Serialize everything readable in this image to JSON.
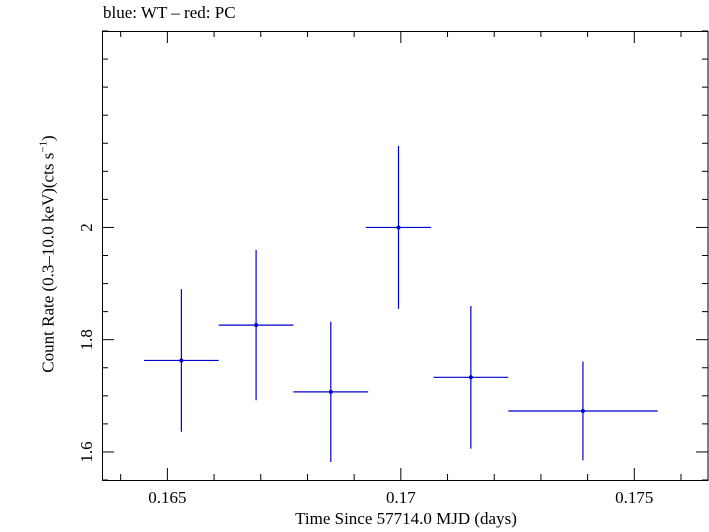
{
  "chart_data": {
    "type": "scatter",
    "title": "blue: WT – red: PC",
    "xlabel": "Time Since 57714.0 MJD (days)",
    "ylabel_main": "Count Rate (0.3–10.0 keV)(cts s",
    "ylabel_sup": "−1",
    "ylabel_tail": ")",
    "xlim": [
      0.1636,
      0.1766
    ],
    "ylim": [
      1.55,
      2.35
    ],
    "x_ticks": [
      {
        "value": 0.165,
        "label": "0.165"
      },
      {
        "value": 0.17,
        "label": "0.17"
      },
      {
        "value": 0.175,
        "label": "0.175"
      }
    ],
    "x_minor_step": 0.001,
    "y_ticks": [
      {
        "value": 1.6,
        "label": "1.6"
      },
      {
        "value": 1.8,
        "label": "1.8"
      },
      {
        "value": 2.0,
        "label": "2"
      }
    ],
    "y_minor_step": 0.05,
    "grid": false,
    "series": [
      {
        "color": "#0000cc",
        "points": [
          {
            "x": 0.1653,
            "xerr": 0.0008,
            "y": 1.763,
            "yerr": 0.127
          },
          {
            "x": 0.1669,
            "xerr": 0.0008,
            "y": 1.826,
            "yerr": 0.134
          },
          {
            "x": 0.1685,
            "xerr": 0.0008,
            "y": 1.707,
            "yerr": 0.125
          },
          {
            "x": 0.16995,
            "xerr": 0.0007,
            "y": 2.0,
            "yerr": 0.145
          },
          {
            "x": 0.1715,
            "xerr": 0.0008,
            "y": 1.733,
            "yerr": 0.127
          },
          {
            "x": 0.1739,
            "xerr": 0.0016,
            "y": 1.673,
            "yerr": 0.088
          }
        ]
      }
    ]
  }
}
